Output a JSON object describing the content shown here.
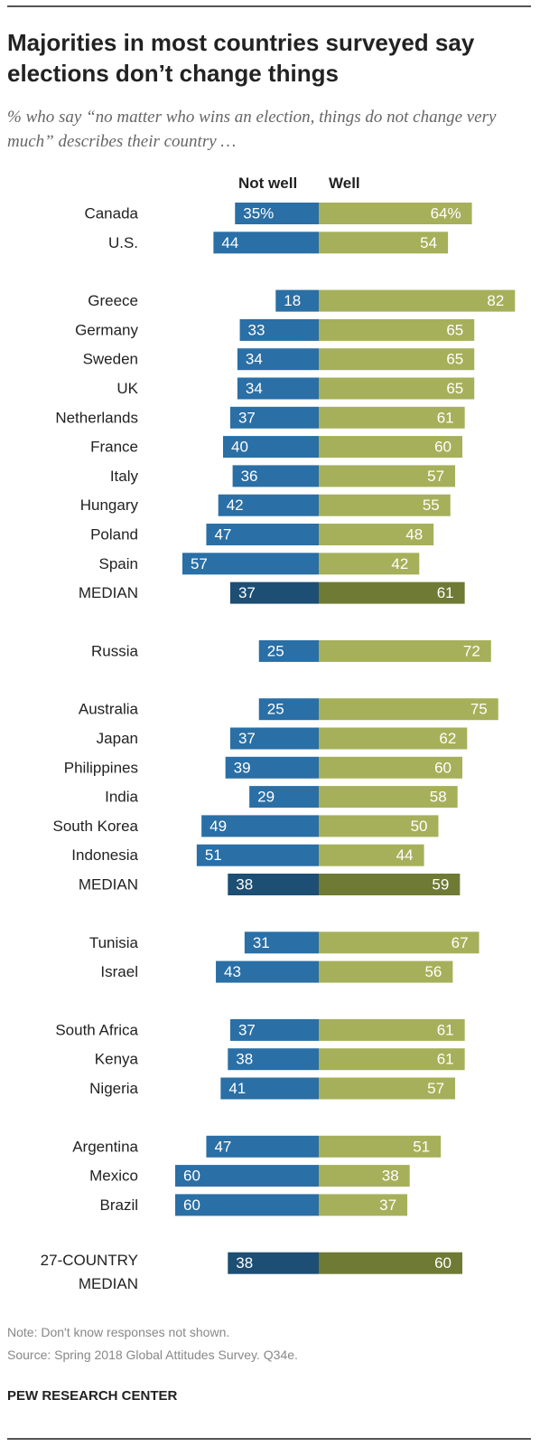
{
  "title": "Majorities in most countries surveyed say elections don’t change things",
  "subtitle": "% who say “no matter who wins an election, things do not change very much” describes their country …",
  "column_headers": {
    "not_well": "Not well",
    "well": "Well"
  },
  "note": "Note: Don't know responses not shown.",
  "source": "Source: Spring 2018 Global Attitudes Survey. Q34e.",
  "credit": "PEW RESEARCH CENTER",
  "colors": {
    "not_well": "#2a6fa5",
    "well": "#a6b05a",
    "not_well_median": "#1d4e73",
    "well_median": "#6f7a35"
  },
  "chart_data": {
    "type": "bar",
    "orientation": "horizontal-diverging",
    "series_names": [
      "Not well",
      "Well"
    ],
    "groups": [
      {
        "rows": [
          {
            "label": "Canada",
            "not_well": 35,
            "well": 64,
            "not_well_text": "35%",
            "well_text": "64%"
          },
          {
            "label": "U.S.",
            "not_well": 44,
            "well": 54,
            "not_well_text": "44",
            "well_text": "54"
          }
        ]
      },
      {
        "rows": [
          {
            "label": "Greece",
            "not_well": 18,
            "well": 82,
            "not_well_text": "18",
            "well_text": "82"
          },
          {
            "label": "Germany",
            "not_well": 33,
            "well": 65,
            "not_well_text": "33",
            "well_text": "65"
          },
          {
            "label": "Sweden",
            "not_well": 34,
            "well": 65,
            "not_well_text": "34",
            "well_text": "65"
          },
          {
            "label": "UK",
            "not_well": 34,
            "well": 65,
            "not_well_text": "34",
            "well_text": "65"
          },
          {
            "label": "Netherlands",
            "not_well": 37,
            "well": 61,
            "not_well_text": "37",
            "well_text": "61"
          },
          {
            "label": "France",
            "not_well": 40,
            "well": 60,
            "not_well_text": "40",
            "well_text": "60"
          },
          {
            "label": "Italy",
            "not_well": 36,
            "well": 57,
            "not_well_text": "36",
            "well_text": "57"
          },
          {
            "label": "Hungary",
            "not_well": 42,
            "well": 55,
            "not_well_text": "42",
            "well_text": "55"
          },
          {
            "label": "Poland",
            "not_well": 47,
            "well": 48,
            "not_well_text": "47",
            "well_text": "48"
          },
          {
            "label": "Spain",
            "not_well": 57,
            "well": 42,
            "not_well_text": "57",
            "well_text": "42"
          },
          {
            "label": "MEDIAN",
            "not_well": 37,
            "well": 61,
            "not_well_text": "37",
            "well_text": "61",
            "median": true
          }
        ]
      },
      {
        "rows": [
          {
            "label": "Russia",
            "not_well": 25,
            "well": 72,
            "not_well_text": "25",
            "well_text": "72"
          }
        ]
      },
      {
        "rows": [
          {
            "label": "Australia",
            "not_well": 25,
            "well": 75,
            "not_well_text": "25",
            "well_text": "75"
          },
          {
            "label": "Japan",
            "not_well": 37,
            "well": 62,
            "not_well_text": "37",
            "well_text": "62"
          },
          {
            "label": "Philippines",
            "not_well": 39,
            "well": 60,
            "not_well_text": "39",
            "well_text": "60"
          },
          {
            "label": "India",
            "not_well": 29,
            "well": 58,
            "not_well_text": "29",
            "well_text": "58"
          },
          {
            "label": "South Korea",
            "not_well": 49,
            "well": 50,
            "not_well_text": "49",
            "well_text": "50"
          },
          {
            "label": "Indonesia",
            "not_well": 51,
            "well": 44,
            "not_well_text": "51",
            "well_text": "44"
          },
          {
            "label": "MEDIAN",
            "not_well": 38,
            "well": 59,
            "not_well_text": "38",
            "well_text": "59",
            "median": true
          }
        ]
      },
      {
        "rows": [
          {
            "label": "Tunisia",
            "not_well": 31,
            "well": 67,
            "not_well_text": "31",
            "well_text": "67"
          },
          {
            "label": "Israel",
            "not_well": 43,
            "well": 56,
            "not_well_text": "43",
            "well_text": "56"
          }
        ]
      },
      {
        "rows": [
          {
            "label": "South Africa",
            "not_well": 37,
            "well": 61,
            "not_well_text": "37",
            "well_text": "61"
          },
          {
            "label": "Kenya",
            "not_well": 38,
            "well": 61,
            "not_well_text": "38",
            "well_text": "61"
          },
          {
            "label": "Nigeria",
            "not_well": 41,
            "well": 57,
            "not_well_text": "41",
            "well_text": "57"
          }
        ]
      },
      {
        "rows": [
          {
            "label": "Argentina",
            "not_well": 47,
            "well": 51,
            "not_well_text": "47",
            "well_text": "51"
          },
          {
            "label": "Mexico",
            "not_well": 60,
            "well": 38,
            "not_well_text": "60",
            "well_text": "38"
          },
          {
            "label": "Brazil",
            "not_well": 60,
            "well": 37,
            "not_well_text": "60",
            "well_text": "37"
          }
        ]
      },
      {
        "rows": [
          {
            "label": "27-COUNTRY MEDIAN",
            "label_lines": [
              "27-COUNTRY",
              "MEDIAN"
            ],
            "not_well": 38,
            "well": 60,
            "not_well_text": "38",
            "well_text": "60",
            "median": true
          }
        ]
      }
    ]
  }
}
